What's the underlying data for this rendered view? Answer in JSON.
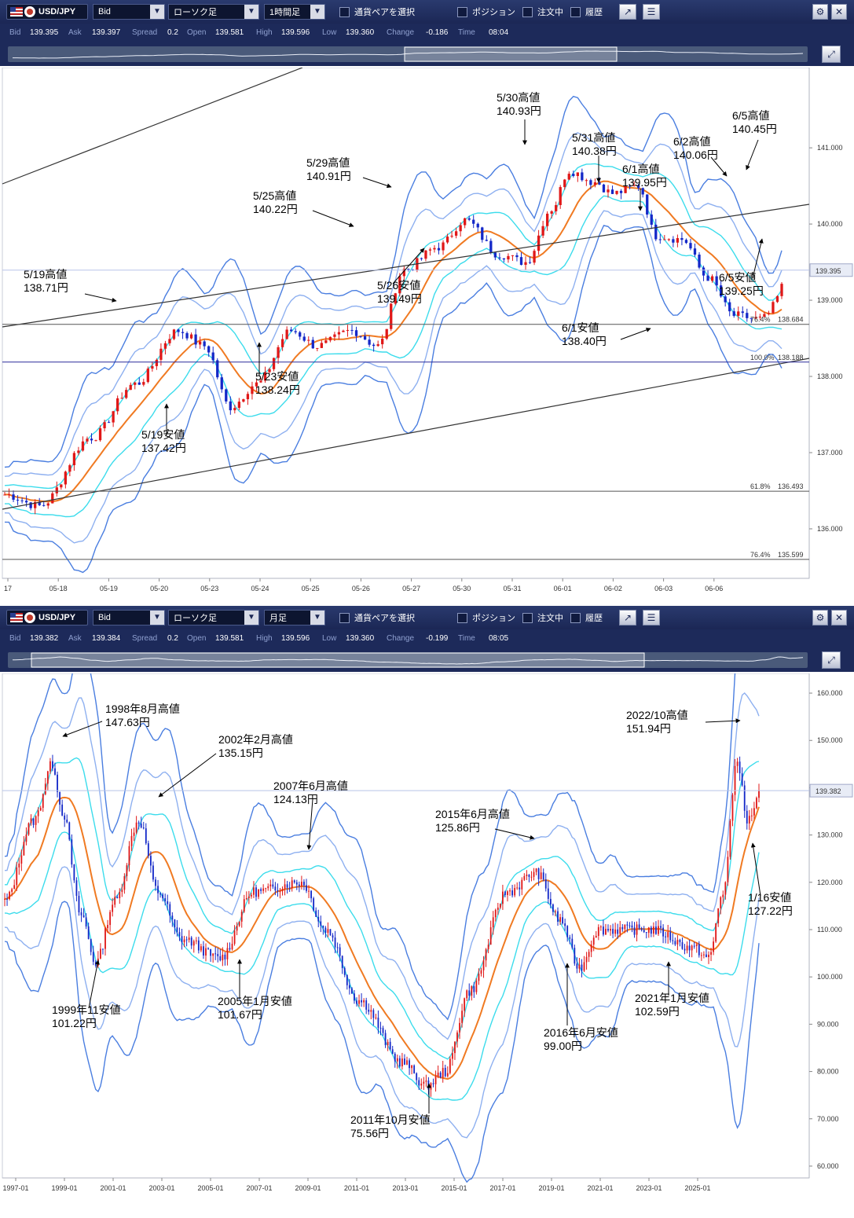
{
  "colors": {
    "bullish": "#e01818",
    "bearish": "#1428c8",
    "ma": "#f07a22",
    "band1": "#3cdcec",
    "band2": "#8eb0f0",
    "band3": "#4a7ee0",
    "trend": "#333333",
    "fib": "#555555",
    "fib100": "#2a2a9a"
  },
  "panels": [
    {
      "toolbar": {
        "symbol": "USD/JPY",
        "price_type": "Bid",
        "chart_type": "ローソク足",
        "timeframe": "1時間足",
        "pair_select": "通貨ペアを選択",
        "chk_position": "ポジション",
        "chk_orders": "注文中",
        "chk_history": "履歴"
      },
      "info": {
        "bid_l": "Bid",
        "bid": "139.395",
        "ask_l": "Ask",
        "ask": "139.397",
        "spread_l": "Spread",
        "spread": "0.2",
        "open_l": "Open",
        "open": "139.581",
        "high_l": "High",
        "high": "139.596",
        "low_l": "Low",
        "low": "139.360",
        "change_l": "Change",
        "change": "-0.186",
        "time_l": "Time",
        "time": "08:04"
      },
      "current_price": "139.395",
      "chart_data": {
        "type": "candlestick",
        "timeframe": "1時間足",
        "ylim": [
          135.35,
          141.95
        ],
        "yticks": [
          "141.000",
          "140.000",
          "139.000",
          "138.000",
          "137.000",
          "136.000"
        ],
        "xticks": [
          "17",
          "05-18",
          "05-19",
          "05-20",
          "05-23",
          "05-24",
          "05-25",
          "05-26",
          "05-27",
          "05-30",
          "05-31",
          "06-01",
          "06-02",
          "06-03",
          "06-06"
        ],
        "fib_levels": [
          {
            "pct": "76.4%",
            "value": "138.684"
          },
          {
            "pct": "100.0%",
            "value": "138.188"
          },
          {
            "pct": "61.8%",
            "value": "136.493"
          },
          {
            "pct": "76.4%",
            "value": "135.599"
          }
        ],
        "annotations": [
          {
            "label": "5/19高値",
            "value": "138.71円"
          },
          {
            "label": "5/19安値",
            "value": "137.42円"
          },
          {
            "label": "5/23安値",
            "value": "138.24円"
          },
          {
            "label": "5/25高値",
            "value": "140.22円"
          },
          {
            "label": "5/29高値",
            "value": "140.91円"
          },
          {
            "label": "5/26安値",
            "value": "139.49円"
          },
          {
            "label": "5/30高値",
            "value": "140.93円"
          },
          {
            "label": "5/31高値",
            "value": "140.38円"
          },
          {
            "label": "6/1高値",
            "value": "139.95円"
          },
          {
            "label": "6/1安値",
            "value": "138.40円"
          },
          {
            "label": "6/2高値",
            "value": "140.06円"
          },
          {
            "label": "6/5高値",
            "value": "140.45円"
          },
          {
            "label": "6/5安値",
            "value": "139.25円"
          }
        ]
      }
    },
    {
      "toolbar": {
        "symbol": "USD/JPY",
        "price_type": "Bid",
        "chart_type": "ローソク足",
        "timeframe": "月足",
        "pair_select": "通貨ペアを選択",
        "chk_position": "ポジション",
        "chk_orders": "注文中",
        "chk_history": "履歴"
      },
      "info": {
        "bid_l": "Bid",
        "bid": "139.382",
        "ask_l": "Ask",
        "ask": "139.384",
        "spread_l": "Spread",
        "spread": "0.2",
        "open_l": "Open",
        "open": "139.581",
        "high_l": "High",
        "high": "139.596",
        "low_l": "Low",
        "low": "139.360",
        "change_l": "Change",
        "change": "-0.199",
        "time_l": "Time",
        "time": "08:05"
      },
      "current_price": "139.382",
      "chart_data": {
        "type": "candlestick",
        "timeframe": "月足",
        "ylim": [
          57.5,
          162.5
        ],
        "yticks": [
          "160.000",
          "150.000",
          "140.000",
          "130.000",
          "120.000",
          "110.000",
          "100.000",
          "90.000",
          "80.000",
          "70.000",
          "60.000"
        ],
        "xticks": [
          "1997-01",
          "1999-01",
          "2001-01",
          "2003-01",
          "2005-01",
          "2007-01",
          "2009-01",
          "2011-01",
          "2013-01",
          "2015-01",
          "2017-01",
          "2019-01",
          "2021-01",
          "2023-01",
          "2025-01"
        ],
        "annotations": [
          {
            "label": "1998年8月高値",
            "value": "147.63円"
          },
          {
            "label": "2002年2月高値",
            "value": "135.15円"
          },
          {
            "label": "2007年6月高値",
            "value": "124.13円"
          },
          {
            "label": "2015年6月高値",
            "value": "125.86円"
          },
          {
            "label": "2022/10高値",
            "value": "151.94円"
          },
          {
            "label": "1999年11安値",
            "value": "101.22円"
          },
          {
            "label": "2005年1月安値",
            "value": "101.67円"
          },
          {
            "label": "2011年10月安値",
            "value": "75.56円"
          },
          {
            "label": "2016年6月安値",
            "value": "99.00円"
          },
          {
            "label": "2021年1月安値",
            "value": "102.59円"
          },
          {
            "label": "1/16安値",
            "value": "127.22円"
          }
        ]
      }
    }
  ]
}
